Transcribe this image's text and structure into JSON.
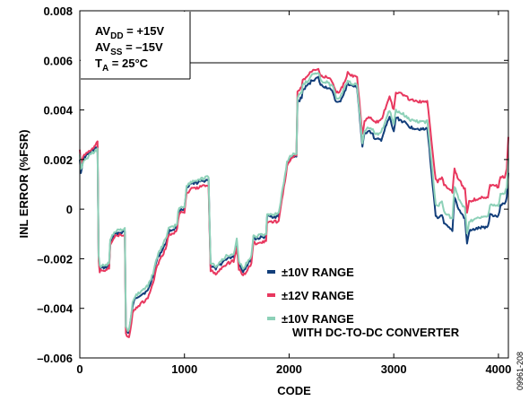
{
  "chart_data": {
    "type": "line",
    "xlabel": "CODE",
    "ylabel": "INL ERROR (%FSR)",
    "xlim": [
      0,
      4095
    ],
    "ylim": [
      -0.006,
      0.008
    ],
    "x_ticks": [
      0,
      1000,
      2000,
      3000,
      4000
    ],
    "x_tick_labels": [
      "0",
      "1000",
      "2000",
      "3000",
      "4000"
    ],
    "y_ticks": [
      -0.006,
      -0.004,
      -0.002,
      0,
      0.002,
      0.004,
      0.006,
      0.008
    ],
    "y_tick_labels": [
      "–0.006",
      "–0.004",
      "–0.002",
      "0",
      "0.002",
      "0.004",
      "0.006",
      "0.008"
    ],
    "grid": false,
    "legend_position": "bottom-right",
    "conditions": [
      {
        "base": "AV",
        "sub": "DD",
        "rest": " = +15V"
      },
      {
        "base": "AV",
        "sub": "SS",
        "rest": " = –15V"
      },
      {
        "base": "T",
        "sub": "A",
        "rest": " = 25°C"
      }
    ],
    "figure_id": "09961-208",
    "x": [
      0,
      10,
      40,
      75,
      130,
      170,
      180,
      190,
      280,
      290,
      330,
      430,
      440,
      460,
      470,
      505,
      530,
      560,
      650,
      700,
      720,
      740,
      820,
      850,
      900,
      930,
      940,
      960,
      1000,
      1020,
      1060,
      1150,
      1230,
      1250,
      1300,
      1400,
      1470,
      1500,
      1520,
      1560,
      1640,
      1660,
      1680,
      1780,
      1790,
      1830,
      1900,
      1980,
      2000,
      2040,
      2070,
      2080,
      2120,
      2130,
      2180,
      2220,
      2280,
      2300,
      2370,
      2420,
      2450,
      2480,
      2540,
      2560,
      2580,
      2650,
      2700,
      2720,
      2760,
      2800,
      2820,
      2880,
      2940,
      2960,
      3000,
      3020,
      3100,
      3160,
      3300,
      3320,
      3400,
      3420,
      3460,
      3480,
      3510,
      3560,
      3580,
      3620,
      3680,
      3700,
      3720,
      3780,
      3900,
      3920,
      4000,
      4020,
      4060,
      4080,
      4095
    ],
    "series": [
      {
        "name": "±10V RANGE",
        "color": "#123e7a",
        "y": [
          0.002,
          0.0015,
          0.0021,
          0.0022,
          0.0024,
          0.0025,
          -0.002,
          -0.0024,
          -0.0023,
          -0.0014,
          -0.001,
          -0.0009,
          -0.0048,
          -0.005,
          -0.005,
          -0.0039,
          -0.0036,
          -0.0035,
          -0.0033,
          -0.0027,
          -0.0023,
          -0.002,
          -0.0014,
          -0.0009,
          -0.0008,
          -0.0007,
          -0.0002,
          0.0,
          0.0,
          0.0008,
          0.001,
          0.0011,
          0.0012,
          -0.0023,
          -0.0024,
          -0.002,
          -0.0019,
          -0.0013,
          -0.0022,
          -0.0025,
          -0.002,
          -0.0011,
          -0.0012,
          -0.0011,
          -0.0003,
          -0.0003,
          -0.0003,
          0.0018,
          0.002,
          0.0021,
          0.0021,
          0.0043,
          0.0045,
          0.0048,
          0.005,
          0.0052,
          0.0053,
          0.005,
          0.0049,
          0.0047,
          0.0043,
          0.0043,
          0.0048,
          0.0051,
          0.005,
          0.0049,
          0.0025,
          0.003,
          0.0032,
          0.003,
          0.0028,
          0.0028,
          0.0035,
          0.0037,
          0.0031,
          0.0037,
          0.0035,
          0.0033,
          0.0032,
          0.0033,
          -0.0003,
          -0.0004,
          -0.0002,
          -0.0006,
          -0.0007,
          -0.0009,
          0.0005,
          0.0,
          -0.0004,
          -0.0014,
          -0.0009,
          -0.0008,
          -0.0007,
          -0.0002,
          -0.0003,
          0.0002,
          0.0002,
          0.0005,
          0.0015
        ]
      },
      {
        "name": "±12V RANGE",
        "color": "#e8385f",
        "y": [
          0.0024,
          0.0018,
          0.0022,
          0.0023,
          0.0025,
          0.0027,
          -0.0021,
          -0.0025,
          -0.0024,
          -0.0015,
          -0.0011,
          -0.001,
          -0.005,
          -0.0052,
          -0.0052,
          -0.0042,
          -0.004,
          -0.0039,
          -0.0036,
          -0.003,
          -0.0026,
          -0.0023,
          -0.0016,
          -0.001,
          -0.001,
          -0.0008,
          -0.0004,
          -0.0001,
          -0.0001,
          0.0006,
          0.0008,
          0.0009,
          0.001,
          -0.0025,
          -0.0026,
          -0.0022,
          -0.0021,
          -0.0016,
          -0.0024,
          -0.0027,
          -0.0022,
          -0.0013,
          -0.0014,
          -0.0013,
          -0.0005,
          -0.0005,
          -0.0005,
          0.0017,
          0.0019,
          0.0021,
          0.0022,
          0.0047,
          0.0049,
          0.0052,
          0.0054,
          0.0056,
          0.0057,
          0.0054,
          0.0053,
          0.0051,
          0.0047,
          0.0047,
          0.0052,
          0.0055,
          0.0054,
          0.0053,
          0.003,
          0.0035,
          0.0037,
          0.0036,
          0.0035,
          0.0036,
          0.0043,
          0.0045,
          0.004,
          0.0047,
          0.0046,
          0.0044,
          0.0043,
          0.0044,
          0.0012,
          0.0011,
          0.0013,
          0.001,
          0.0009,
          0.0007,
          0.0016,
          0.0012,
          0.0008,
          -0.0001,
          0.0003,
          0.0004,
          0.0005,
          0.001,
          0.0009,
          0.0013,
          0.0013,
          0.0016,
          0.0029
        ]
      },
      {
        "name": "±10V RANGE\nWITH DC-TO-DC CONVERTER",
        "color": "#8dd1b8",
        "y": [
          0.0022,
          0.0016,
          0.002,
          0.0021,
          0.0023,
          0.0024,
          -0.0019,
          -0.0023,
          -0.0022,
          -0.0012,
          -0.0009,
          -0.0008,
          -0.0047,
          -0.0049,
          -0.0049,
          -0.0038,
          -0.0035,
          -0.0034,
          -0.0031,
          -0.0026,
          -0.0022,
          -0.0019,
          -0.0012,
          -0.0008,
          -0.0007,
          -0.0006,
          -0.0001,
          0.0001,
          0.0001,
          0.0009,
          0.0011,
          0.0012,
          0.0013,
          -0.0022,
          -0.0023,
          -0.0019,
          -0.0018,
          -0.0012,
          -0.0021,
          -0.0024,
          -0.0019,
          -0.001,
          -0.0011,
          -0.001,
          -0.0002,
          -0.0002,
          -0.0002,
          0.0019,
          0.0021,
          0.0022,
          0.0022,
          0.0045,
          0.0047,
          0.005,
          0.0052,
          0.0054,
          0.0055,
          0.0052,
          0.0051,
          0.0049,
          0.0045,
          0.0045,
          0.005,
          0.0052,
          0.0051,
          0.005,
          0.0027,
          0.0031,
          0.0033,
          0.0032,
          0.003,
          0.0031,
          0.0038,
          0.004,
          0.0034,
          0.004,
          0.0038,
          0.0036,
          0.0035,
          0.0036,
          0.0002,
          0.0001,
          0.0003,
          -0.0001,
          -0.0002,
          -0.0004,
          0.0009,
          0.0004,
          0.0,
          -0.001,
          -0.0005,
          -0.0004,
          -0.0003,
          0.0002,
          0.0001,
          0.0006,
          0.0006,
          0.0009,
          0.002
        ]
      }
    ]
  }
}
